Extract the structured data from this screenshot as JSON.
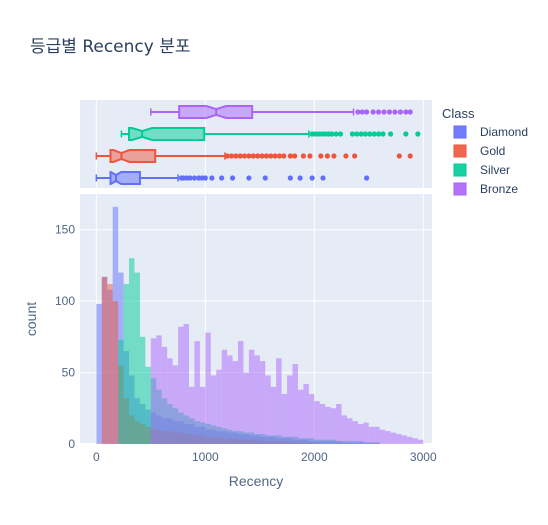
{
  "chart_data": {
    "type": "histogram",
    "title": "등급별 Recency 분포",
    "xlabel": "Recency",
    "ylabel": "count",
    "xlim": [
      -150,
      3080
    ],
    "ylim": [
      0,
      175
    ],
    "x_ticks": [
      0,
      1000,
      2000,
      3000
    ],
    "y_ticks": [
      0,
      50,
      100,
      150
    ],
    "grid": true,
    "bin_width": 50,
    "bin_start": 0,
    "legend": {
      "title": "Class",
      "placement": "top-right"
    },
    "series": [
      {
        "name": "Diamond",
        "color": "#636efa",
        "counts": [
          98,
          117,
          108,
          166,
          120,
          65,
          48,
          32,
          28,
          24,
          22,
          20,
          18,
          18,
          16,
          16,
          14,
          14,
          12,
          12,
          10,
          10,
          9,
          9,
          8,
          8,
          7,
          7,
          6,
          6,
          5,
          5,
          5,
          4,
          4,
          4,
          3,
          3,
          3,
          2,
          2,
          2,
          2,
          2,
          2,
          1,
          1,
          1,
          1,
          1,
          1,
          1
        ],
        "box": {
          "q1": 130,
          "median": 180,
          "q3": 400,
          "whisker_low": 0,
          "whisker_high": 750,
          "outliers": [
            780,
            800,
            830,
            860,
            900,
            940,
            970,
            1000,
            1060,
            1150,
            1250,
            1400,
            1550,
            1780,
            1870,
            1980,
            2080,
            2480
          ]
        }
      },
      {
        "name": "Gold",
        "color": "#ef553b",
        "counts": [
          0,
          117,
          112,
          100,
          55,
          32,
          20,
          16,
          14,
          12,
          11,
          10,
          9,
          9,
          8,
          8,
          7,
          7,
          6,
          6,
          5,
          5,
          5,
          4,
          4,
          4,
          3,
          3,
          3,
          3,
          2,
          2,
          2,
          2,
          2,
          2,
          1,
          1,
          1,
          1
        ],
        "box": {
          "q1": 130,
          "median": 230,
          "q3": 540,
          "whisker_low": 0,
          "whisker_high": 1180,
          "outliers": [
            1200,
            1240,
            1280,
            1320,
            1360,
            1400,
            1440,
            1480,
            1520,
            1560,
            1600,
            1640,
            1680,
            1720,
            1780,
            1820,
            1900,
            1960,
            2060,
            2120,
            2180,
            2290,
            2370,
            2780,
            2880
          ]
        }
      },
      {
        "name": "Silver",
        "color": "#00cc96",
        "counts": [
          0,
          0,
          0,
          0,
          73,
          112,
          130,
          120,
          75,
          54,
          46,
          38,
          32,
          28,
          25,
          22,
          20,
          18,
          16,
          15,
          14,
          13,
          12,
          11,
          10,
          9,
          9,
          8,
          8,
          7,
          7,
          6,
          6,
          6,
          5,
          5,
          5,
          4,
          4,
          4,
          3,
          3,
          3,
          3,
          2,
          2,
          2,
          2,
          2,
          1,
          1,
          1
        ],
        "box": {
          "q1": 300,
          "median": 420,
          "q3": 990,
          "whisker_low": 230,
          "whisker_high": 1950,
          "outliers": [
            1980,
            2010,
            2040,
            2070,
            2100,
            2130,
            2160,
            2200,
            2240,
            2350,
            2390,
            2430,
            2470,
            2510,
            2550,
            2590,
            2630,
            2700,
            2840,
            2950
          ]
        }
      },
      {
        "name": "Bronze",
        "color": "#ab63fa",
        "counts": [
          0,
          0,
          0,
          0,
          0,
          0,
          0,
          0,
          0,
          0,
          74,
          76,
          68,
          60,
          55,
          82,
          84,
          40,
          72,
          40,
          78,
          48,
          52,
          66,
          62,
          58,
          72,
          50,
          66,
          62,
          58,
          48,
          40,
          60,
          35,
          48,
          56,
          38,
          42,
          35,
          30,
          28,
          26,
          25,
          28,
          20,
          18,
          16,
          14,
          15,
          12,
          12,
          10,
          9,
          8,
          7,
          6,
          5,
          4,
          3
        ],
        "box": {
          "q1": 760,
          "median": 1100,
          "q3": 1430,
          "whisker_low": 500,
          "whisker_high": 2360,
          "outliers": [
            2400,
            2440,
            2480,
            2540,
            2590,
            2640,
            2690,
            2740,
            2790,
            2840,
            2880
          ]
        }
      }
    ]
  }
}
